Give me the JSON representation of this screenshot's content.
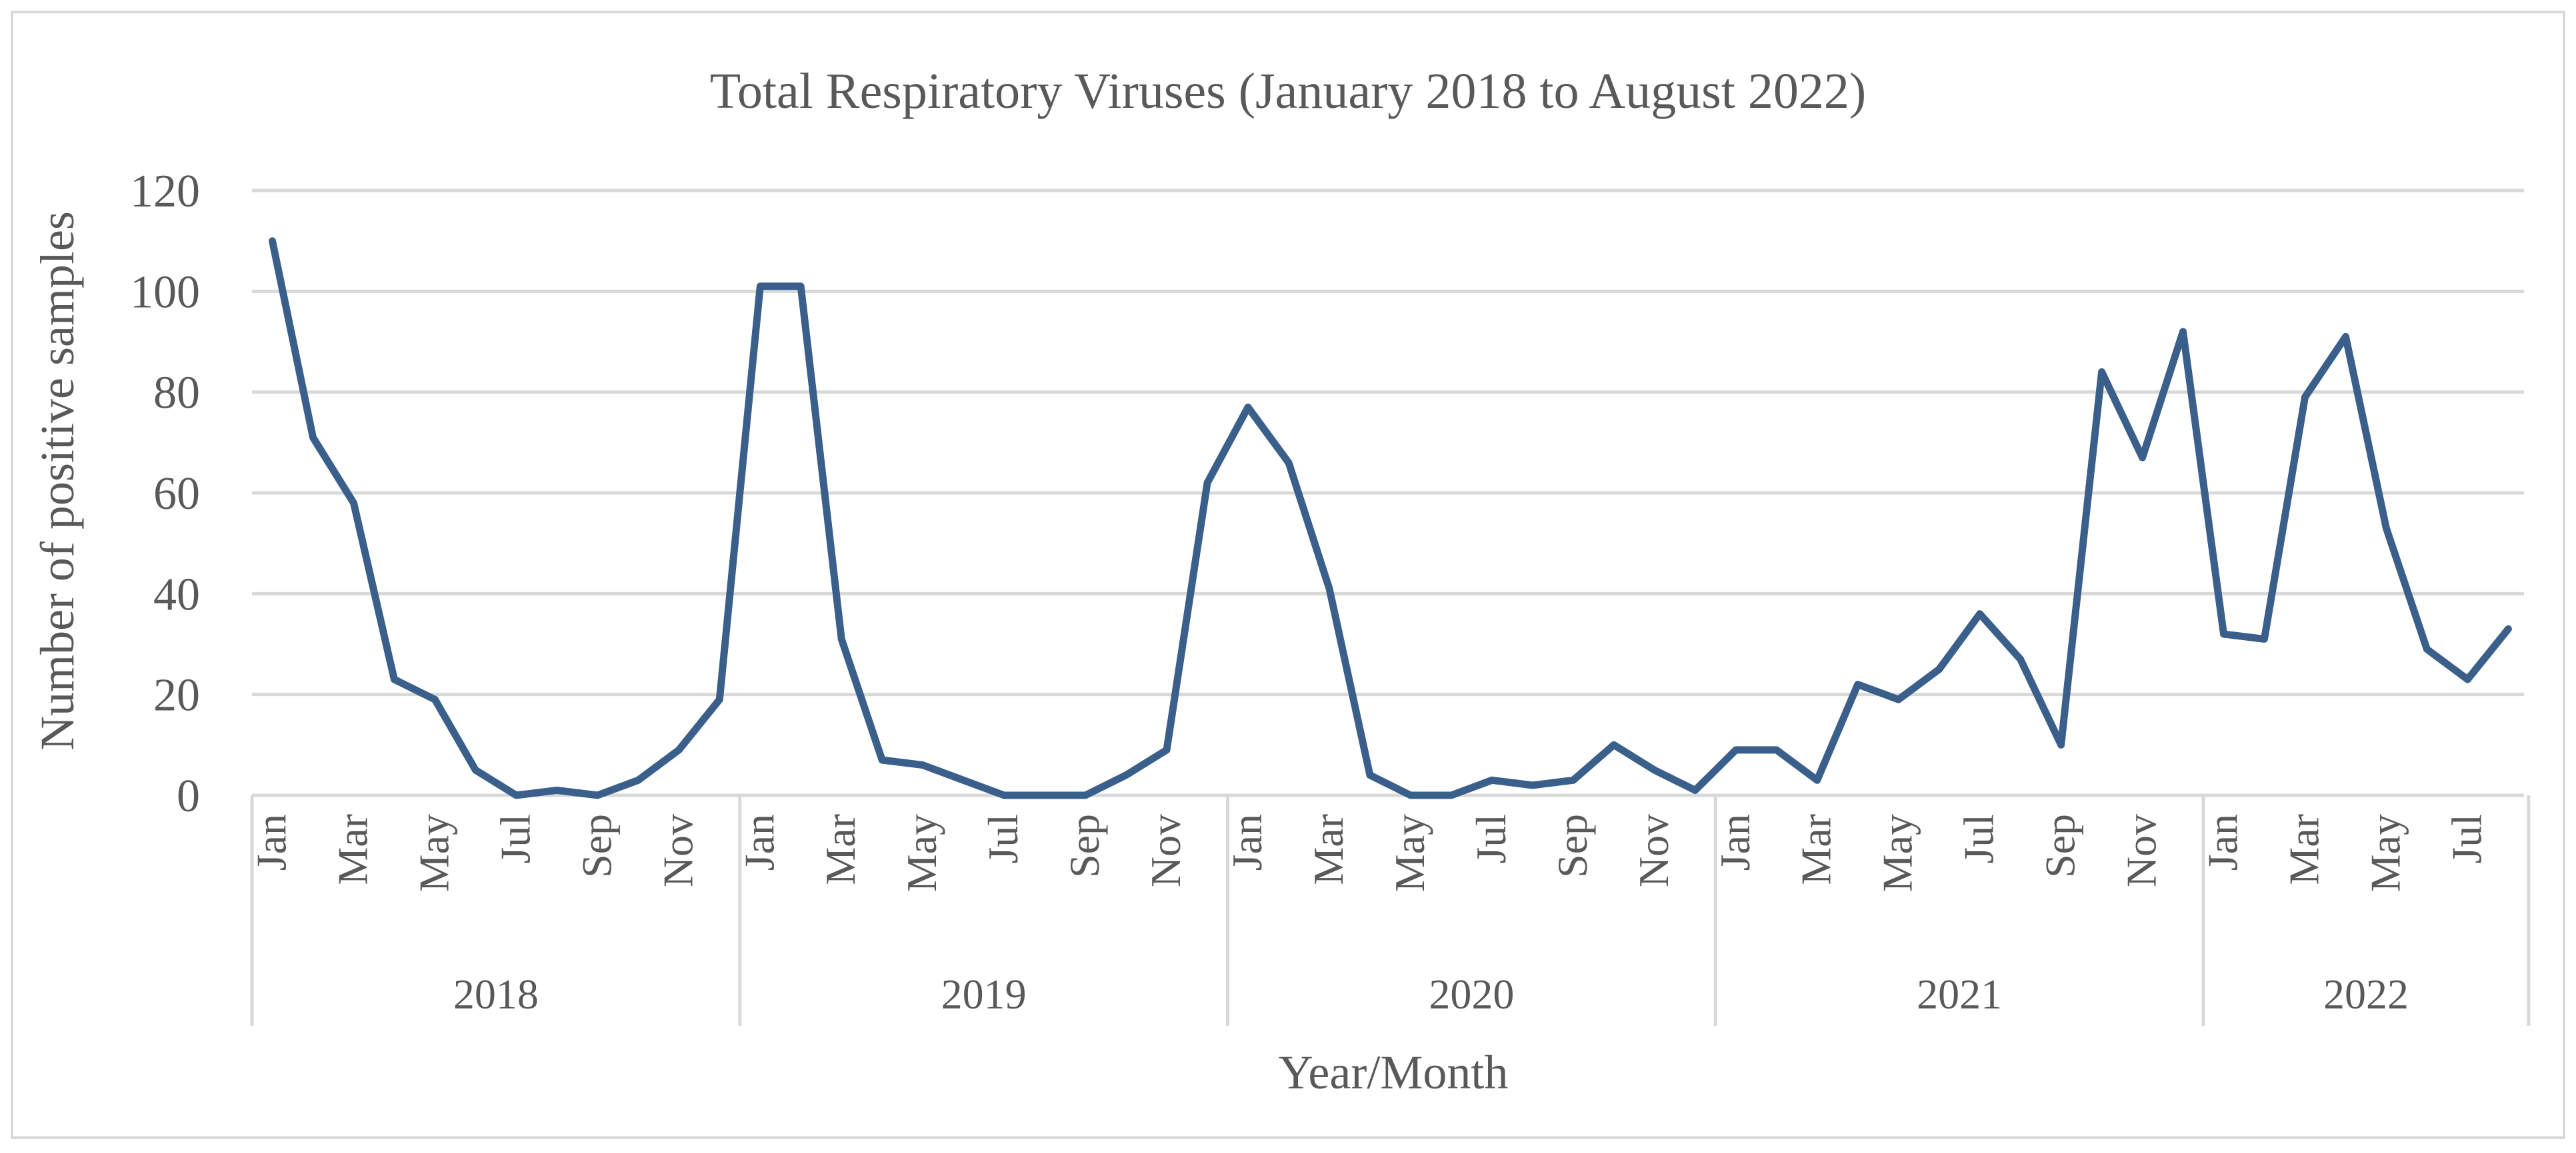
{
  "chart_data": {
    "type": "line",
    "title": "Total Respiratory Viruses (January 2018 to August 2022)",
    "xlabel": "Year/Month",
    "ylabel": "Number of positive samples",
    "ylim": [
      0,
      120
    ],
    "yticks": [
      0,
      20,
      40,
      60,
      80,
      100,
      120
    ],
    "grid": true,
    "legend": "none",
    "line_color": "#3a5f8a",
    "groups": [
      {
        "year": "2018",
        "months": [
          "Jan",
          "Feb",
          "Mar",
          "Apr",
          "May",
          "Jun",
          "Jul",
          "Aug",
          "Sep",
          "Oct",
          "Nov",
          "Dec"
        ],
        "values": [
          110,
          71,
          58,
          23,
          19,
          5,
          0,
          1,
          0,
          3,
          9,
          19
        ]
      },
      {
        "year": "2019",
        "months": [
          "Jan",
          "Feb",
          "Mar",
          "Apr",
          "May",
          "Jun",
          "Jul",
          "Aug",
          "Sep",
          "Oct",
          "Nov",
          "Dec"
        ],
        "values": [
          101,
          101,
          31,
          7,
          6,
          3,
          0,
          0,
          0,
          4,
          9,
          62
        ]
      },
      {
        "year": "2020",
        "months": [
          "Jan",
          "Feb",
          "Mar",
          "Apr",
          "May",
          "Jun",
          "Jul",
          "Aug",
          "Sep",
          "Oct",
          "Nov",
          "Dec"
        ],
        "values": [
          77,
          66,
          41,
          4,
          0,
          0,
          3,
          2,
          3,
          10,
          5,
          1
        ]
      },
      {
        "year": "2021",
        "months": [
          "Jan",
          "Feb",
          "Mar",
          "Apr",
          "May",
          "Jun",
          "Jul",
          "Aug",
          "Sep",
          "Oct",
          "Nov",
          "Dec"
        ],
        "values": [
          9,
          9,
          3,
          22,
          19,
          25,
          36,
          27,
          10,
          84,
          67,
          92
        ]
      },
      {
        "year": "2022",
        "months": [
          "Jan",
          "Feb",
          "Mar",
          "Apr",
          "May",
          "Jun",
          "Jul",
          "Aug"
        ],
        "values": [
          32,
          31,
          79,
          91,
          53,
          29,
          23,
          33
        ]
      }
    ],
    "shown_month_labels": [
      "Jan",
      "Mar",
      "May",
      "Jul",
      "Sep",
      "Nov"
    ]
  }
}
